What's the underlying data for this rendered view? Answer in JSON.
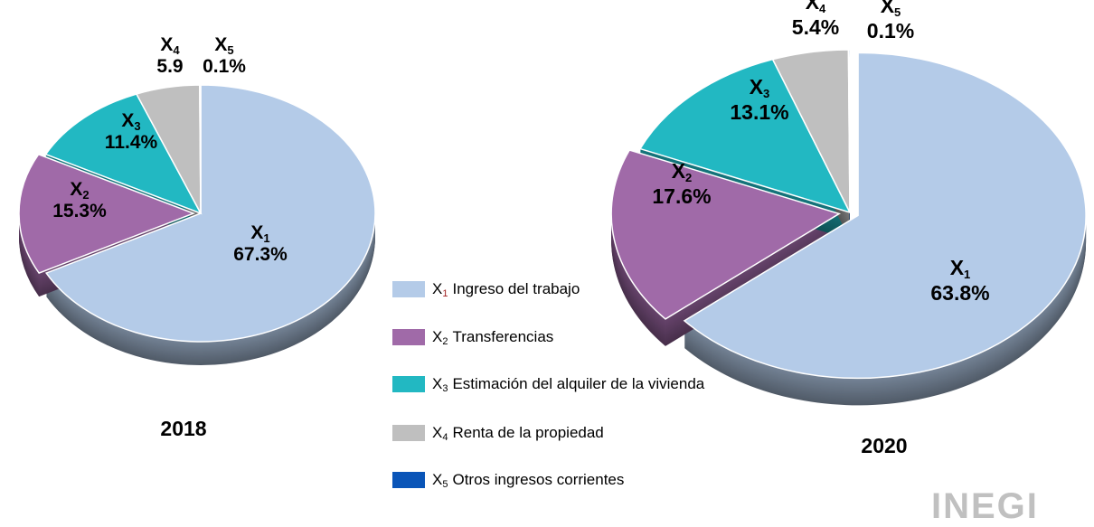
{
  "chart_data": [
    {
      "type": "pie",
      "title": "2018",
      "categories": [
        "X1",
        "X2",
        "X3",
        "X4",
        "X5"
      ],
      "values": [
        67.3,
        15.3,
        11.4,
        5.9,
        0.1
      ],
      "data_labels": [
        "67.3%",
        "15.3%",
        "11.4%",
        "5.9",
        "0.1%"
      ]
    },
    {
      "type": "pie",
      "title": "2020",
      "categories": [
        "X1",
        "X2",
        "X3",
        "X4",
        "X5"
      ],
      "values": [
        63.8,
        17.6,
        13.1,
        5.4,
        0.1
      ],
      "data_labels": [
        "63.8%",
        "17.6%",
        "13.1%",
        "5.4%",
        "0.1%"
      ]
    }
  ],
  "legend": {
    "position": "center",
    "items": [
      {
        "symbol": "X",
        "sub": "1",
        "label": "Ingreso del trabajo",
        "color": "#b4cbe8"
      },
      {
        "symbol": "X",
        "sub": "2",
        "label": "Transferencias",
        "color": "#a06aa8"
      },
      {
        "symbol": "X",
        "sub": "3",
        "label": "Estimación del alquiler de la vivienda",
        "color": "#22b8c2"
      },
      {
        "symbol": "X",
        "sub": "4",
        "label": "Renta de la propiedad",
        "color": "#bfbfbf"
      },
      {
        "symbol": "X",
        "sub": "5",
        "label": "Otros ingresos corrientes",
        "color": "#0a55b8"
      }
    ]
  },
  "logo_text": "INEGI"
}
